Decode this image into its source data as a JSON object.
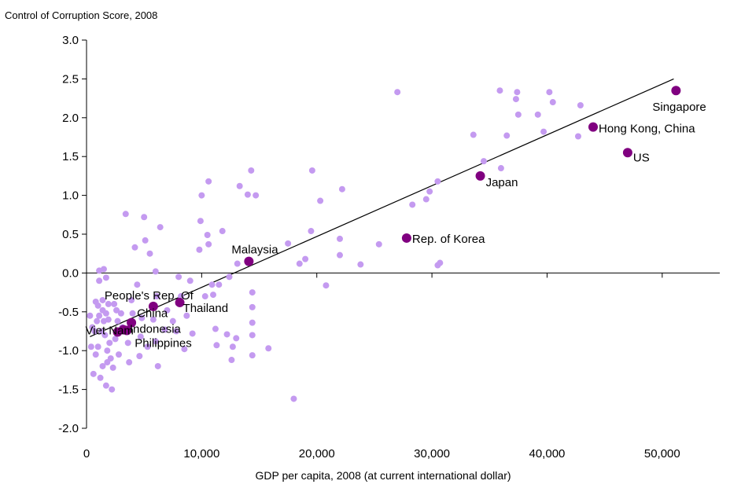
{
  "chart_data": {
    "type": "scatter",
    "title": "",
    "ylabel": "Control of Corruption Score, 2008",
    "xlabel": "GDP per capita, 2008 (at current international dollar)",
    "xlim": [
      0,
      55000
    ],
    "ylim": [
      -2.0,
      3.0
    ],
    "xticks": [
      0,
      10000,
      20000,
      30000,
      40000,
      50000
    ],
    "xtick_labels": [
      "0",
      "10,000",
      "20,000",
      "30,000",
      "40,000",
      "50,000"
    ],
    "yticks": [
      -2.0,
      -1.5,
      -1.0,
      -0.5,
      0.0,
      0.5,
      1.0,
      1.5,
      2.0,
      2.5,
      3.0
    ],
    "ytick_labels": [
      "-2.0",
      "-1.5",
      "-1.0",
      "-0.5",
      "0.0",
      "0.5",
      "1.0",
      "1.5",
      "2.0",
      "2.5",
      "3.0"
    ],
    "grid": false,
    "colors": {
      "highlight": "#800080",
      "other": "#c49af0",
      "trend": "#000000",
      "axis": "#000000"
    },
    "trendline": {
      "x": [
        300,
        51000
      ],
      "y": [
        -0.82,
        2.5
      ]
    },
    "highlighted": [
      {
        "label": "Singapore",
        "x": 51200,
        "y": 2.35
      },
      {
        "label": "Hong Kong, China",
        "x": 44000,
        "y": 1.88
      },
      {
        "label": "US",
        "x": 47000,
        "y": 1.55
      },
      {
        "label": "Japan",
        "x": 34200,
        "y": 1.25
      },
      {
        "label": "Rep. of Korea",
        "x": 27800,
        "y": 0.45
      },
      {
        "label": "Malaysia",
        "x": 14100,
        "y": 0.15
      },
      {
        "label": "Thailand",
        "x": 8100,
        "y": -0.38
      },
      {
        "label": "People's Rep. Of",
        "x": 5800,
        "y": -0.43
      },
      {
        "label": "China",
        "x": 3900,
        "y": -0.64
      },
      {
        "label": "Indonesia",
        "x": 3200,
        "y": -0.73
      },
      {
        "label": "Philippines",
        "x": 3500,
        "y": -0.74
      },
      {
        "label": "Viet Nam",
        "x": 2700,
        "y": -0.76
      }
    ],
    "other_points": [
      [
        300,
        -0.55
      ],
      [
        400,
        -0.95
      ],
      [
        500,
        -0.7
      ],
      [
        600,
        -1.3
      ],
      [
        700,
        -0.75
      ],
      [
        800,
        -0.37
      ],
      [
        800,
        -1.05
      ],
      [
        900,
        -0.62
      ],
      [
        1000,
        -0.95
      ],
      [
        1000,
        -0.42
      ],
      [
        1100,
        -0.1
      ],
      [
        1100,
        0.03
      ],
      [
        1100,
        -0.55
      ],
      [
        1200,
        -1.35
      ],
      [
        1300,
        -0.75
      ],
      [
        1400,
        -0.48
      ],
      [
        1400,
        -0.35
      ],
      [
        1400,
        -1.2
      ],
      [
        1500,
        0.05
      ],
      [
        1500,
        -0.62
      ],
      [
        1600,
        -0.8
      ],
      [
        1700,
        -0.06
      ],
      [
        1700,
        -0.52
      ],
      [
        1700,
        -1.45
      ],
      [
        1800,
        -1.0
      ],
      [
        1800,
        -1.15
      ],
      [
        1900,
        -0.4
      ],
      [
        1900,
        -0.6
      ],
      [
        2000,
        -0.9
      ],
      [
        2100,
        -1.1
      ],
      [
        2200,
        -1.5
      ],
      [
        2300,
        -1.22
      ],
      [
        2400,
        -0.4
      ],
      [
        2500,
        -0.85
      ],
      [
        2600,
        -0.48
      ],
      [
        2700,
        -0.62
      ],
      [
        2800,
        -1.05
      ],
      [
        3000,
        -0.52
      ],
      [
        3100,
        -0.7
      ],
      [
        3400,
        0.76
      ],
      [
        3600,
        -0.9
      ],
      [
        3700,
        -1.15
      ],
      [
        3900,
        -0.35
      ],
      [
        4000,
        -0.52
      ],
      [
        4200,
        0.33
      ],
      [
        4400,
        -0.15
      ],
      [
        4600,
        -1.07
      ],
      [
        4700,
        -0.82
      ],
      [
        4800,
        -0.58
      ],
      [
        5000,
        0.72
      ],
      [
        5100,
        0.42
      ],
      [
        5300,
        -0.95
      ],
      [
        5500,
        0.25
      ],
      [
        5800,
        -0.6
      ],
      [
        6000,
        -0.88
      ],
      [
        6000,
        0.02
      ],
      [
        6100,
        -0.3
      ],
      [
        6200,
        -1.2
      ],
      [
        6400,
        0.59
      ],
      [
        6800,
        -0.73
      ],
      [
        7000,
        -0.48
      ],
      [
        7500,
        -0.62
      ],
      [
        7800,
        -0.75
      ],
      [
        8000,
        -0.05
      ],
      [
        8200,
        -0.3
      ],
      [
        8500,
        -0.98
      ],
      [
        8700,
        -0.55
      ],
      [
        9000,
        -0.1
      ],
      [
        9200,
        -0.78
      ],
      [
        9800,
        0.3
      ],
      [
        9900,
        0.67
      ],
      [
        10000,
        1.0
      ],
      [
        10300,
        -0.3
      ],
      [
        10500,
        0.49
      ],
      [
        10600,
        0.37
      ],
      [
        10600,
        1.18
      ],
      [
        10900,
        -0.15
      ],
      [
        11000,
        -0.28
      ],
      [
        11200,
        -0.72
      ],
      [
        11300,
        -0.93
      ],
      [
        11500,
        -0.15
      ],
      [
        11800,
        0.54
      ],
      [
        12200,
        -0.79
      ],
      [
        12400,
        -0.05
      ],
      [
        12600,
        -1.12
      ],
      [
        12700,
        -0.95
      ],
      [
        13000,
        -0.84
      ],
      [
        13100,
        0.12
      ],
      [
        13300,
        1.12
      ],
      [
        14000,
        1.01
      ],
      [
        14300,
        1.32
      ],
      [
        14400,
        -0.44
      ],
      [
        14400,
        -0.64
      ],
      [
        14400,
        -0.8
      ],
      [
        14400,
        -1.06
      ],
      [
        14400,
        -0.25
      ],
      [
        14700,
        1.0
      ],
      [
        15800,
        -0.97
      ],
      [
        17500,
        0.38
      ],
      [
        18000,
        -1.62
      ],
      [
        18500,
        0.12
      ],
      [
        19000,
        0.18
      ],
      [
        19500,
        0.54
      ],
      [
        19600,
        1.32
      ],
      [
        20300,
        0.93
      ],
      [
        20800,
        -0.16
      ],
      [
        22000,
        0.44
      ],
      [
        22000,
        0.23
      ],
      [
        22200,
        1.08
      ],
      [
        23800,
        0.11
      ],
      [
        25400,
        0.37
      ],
      [
        27000,
        2.33
      ],
      [
        28300,
        0.88
      ],
      [
        29500,
        0.95
      ],
      [
        29800,
        1.05
      ],
      [
        30500,
        0.1
      ],
      [
        30500,
        1.18
      ],
      [
        30700,
        0.13
      ],
      [
        33600,
        1.78
      ],
      [
        34500,
        1.44
      ],
      [
        35900,
        2.35
      ],
      [
        36000,
        1.35
      ],
      [
        36500,
        1.77
      ],
      [
        37300,
        2.24
      ],
      [
        37400,
        2.33
      ],
      [
        37500,
        2.04
      ],
      [
        39200,
        2.04
      ],
      [
        39700,
        1.82
      ],
      [
        40200,
        2.33
      ],
      [
        40500,
        2.2
      ],
      [
        42700,
        1.76
      ],
      [
        42900,
        2.16
      ]
    ]
  }
}
